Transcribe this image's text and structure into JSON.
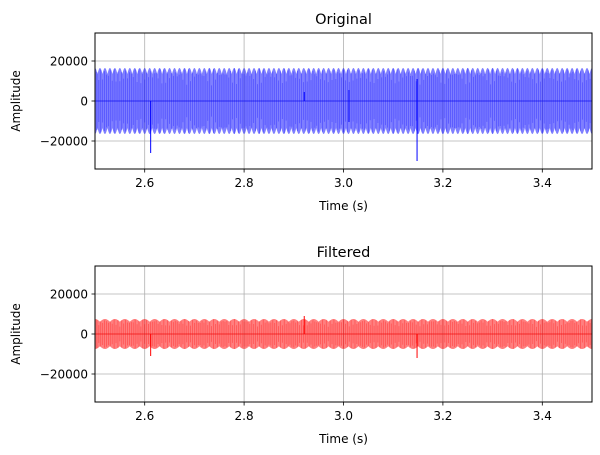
{
  "chart_data": [
    {
      "type": "line",
      "title": "Original",
      "xlabel": "Time (s)",
      "ylabel": "Amplitude",
      "xlim": [
        2.5,
        3.5
      ],
      "ylim": [
        -34000,
        34000
      ],
      "xticks": [
        2.6,
        2.8,
        3.0,
        3.2,
        3.4
      ],
      "xtick_labels": [
        "2.6",
        "2.8",
        "3.0",
        "3.2",
        "3.4"
      ],
      "yticks": [
        20000,
        0,
        -20000
      ],
      "ytick_labels": [
        "20000",
        "0",
        "−20000"
      ],
      "grid": true,
      "series": [
        {
          "color": "#0000ff",
          "signal": {
            "envelope": 16500,
            "beat_hz": 100,
            "baseline": 0
          },
          "spikes": [
            {
              "x": 2.612,
              "y": -26000
            },
            {
              "x": 2.921,
              "y": 4500
            },
            {
              "x": 3.011,
              "y": 5500
            },
            {
              "x": 3.011,
              "y": -10500
            },
            {
              "x": 3.148,
              "y": -30000
            },
            {
              "x": 3.148,
              "y": 11000
            }
          ]
        }
      ]
    },
    {
      "type": "line",
      "title": "Filtered",
      "xlabel": "Time (s)",
      "ylabel": "Amplitude",
      "xlim": [
        2.5,
        3.5
      ],
      "ylim": [
        -34000,
        34000
      ],
      "xticks": [
        2.6,
        2.8,
        3.0,
        3.2,
        3.4
      ],
      "xtick_labels": [
        "2.6",
        "2.8",
        "3.0",
        "3.2",
        "3.4"
      ],
      "yticks": [
        20000,
        0,
        -20000
      ],
      "ytick_labels": [
        "20000",
        "0",
        "−20000"
      ],
      "grid": true,
      "series": [
        {
          "color": "#ff0000",
          "signal": {
            "envelope": 7500,
            "beat_hz": 50,
            "baseline": 0
          },
          "spikes": [
            {
              "x": 2.612,
              "y": -11000
            },
            {
              "x": 2.921,
              "y": 9000
            },
            {
              "x": 3.148,
              "y": -12000
            }
          ]
        }
      ]
    }
  ]
}
